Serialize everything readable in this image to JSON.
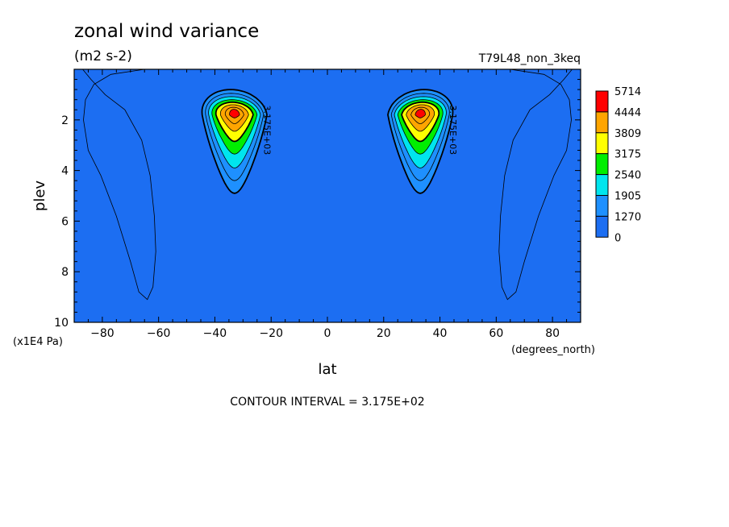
{
  "chart_data": {
    "type": "heatmap",
    "title": "zonal wind variance",
    "units": "(m2 s-2)",
    "run_label": "T79L48_non_3keq",
    "xlabel": "lat",
    "x_units": "(degrees_north)",
    "ylabel": "plev",
    "y_units": "(x1E4 Pa)",
    "xlim": [
      -90,
      90
    ],
    "ylim": [
      10,
      0
    ],
    "x_ticks": [
      -80,
      -60,
      -40,
      -20,
      0,
      20,
      40,
      60,
      80
    ],
    "y_ticks": [
      2,
      4,
      6,
      8,
      10
    ],
    "colorbar": {
      "levels": [
        0,
        1270,
        1905,
        2540,
        3175,
        3809,
        4444,
        5714
      ],
      "colors": [
        "#1c6ef2",
        "#1e90ff",
        "#00e5ee",
        "#00ee00",
        "#ffff00",
        "#ffa500",
        "#ff0000"
      ]
    },
    "contour_interval_text": "CONTOUR INTERVAL = 3.175E+02",
    "contour_labels": [
      "3.175E+03",
      "3.175E+03"
    ],
    "jets": [
      {
        "lat": -33,
        "plev": 1.8
      },
      {
        "lat": 33,
        "plev": 1.8
      }
    ]
  }
}
